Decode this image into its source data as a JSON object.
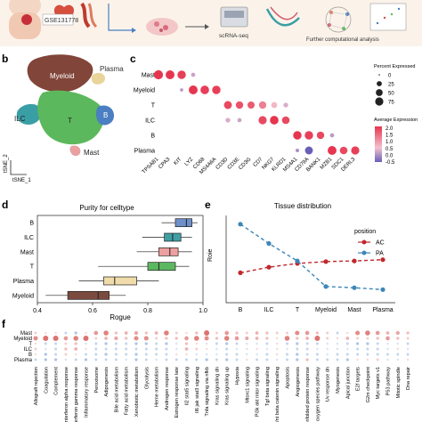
{
  "panel_a": {
    "geo_id": "GSE131778",
    "step_label": "scRNA-seq",
    "analysis_label": "Further computational analysis"
  },
  "panel_b": {
    "letter": "b",
    "clusters": [
      {
        "name": "Myeloid",
        "color": "#7a3b2e"
      },
      {
        "name": "Plasma",
        "color": "#e9d49a"
      },
      {
        "name": "ILC",
        "color": "#3a9ea5"
      },
      {
        "name": "T",
        "color": "#5cb85c"
      },
      {
        "name": "B",
        "color": "#4a7fc1"
      },
      {
        "name": "Mast",
        "color": "#e8a0a0"
      }
    ],
    "xlabel": "tSNE_1",
    "ylabel": "tSNE_2"
  },
  "panel_c": {
    "letter": "c",
    "legend_size_title": "Percent Expressed",
    "legend_color_title": "Average Expression",
    "chart_data": {
      "type": "dotplot",
      "rows": [
        "Mast",
        "Myeloid",
        "T",
        "ILC",
        "B",
        "Plasma"
      ],
      "genes": [
        "TPSAB1",
        "CPA3",
        "KIT",
        "LYZ",
        "CD68",
        "MS4A6A",
        "CD3D",
        "CD3E",
        "CD3G",
        "CD7",
        "NKG7",
        "KLRD1",
        "MS4A1",
        "CD79A",
        "BANK1",
        "MZB1",
        "SDC1",
        "DERL3"
      ],
      "size_ticks": [
        0,
        25,
        50,
        75
      ],
      "color_ticks": [
        2.0,
        1.5,
        1.0,
        0.5,
        0.0,
        -0.5
      ],
      "dots": [
        {
          "row": "Mast",
          "gene": "TPSAB1",
          "pct": 95,
          "avg": 2.0
        },
        {
          "row": "Mast",
          "gene": "CPA3",
          "pct": 90,
          "avg": 2.0
        },
        {
          "row": "Mast",
          "gene": "KIT",
          "pct": 80,
          "avg": 1.9
        },
        {
          "row": "Myeloid",
          "gene": "LYZ",
          "pct": 90,
          "avg": 2.0
        },
        {
          "row": "Myeloid",
          "gene": "CD68",
          "pct": 85,
          "avg": 1.9
        },
        {
          "row": "Myeloid",
          "gene": "MS4A6A",
          "pct": 80,
          "avg": 1.9
        },
        {
          "row": "Mast",
          "gene": "LYZ",
          "pct": 15,
          "avg": 0.2
        },
        {
          "row": "Myeloid",
          "gene": "KIT",
          "pct": 8,
          "avg": 0.1
        },
        {
          "row": "T",
          "gene": "CD3D",
          "pct": 70,
          "avg": 1.8
        },
        {
          "row": "T",
          "gene": "CD3E",
          "pct": 60,
          "avg": 1.7
        },
        {
          "row": "T",
          "gene": "CD3G",
          "pct": 55,
          "avg": 1.6
        },
        {
          "row": "T",
          "gene": "CD7",
          "pct": 60,
          "avg": 1.2
        },
        {
          "row": "T",
          "gene": "NKG7",
          "pct": 35,
          "avg": 0.6
        },
        {
          "row": "T",
          "gene": "KLRD1",
          "pct": 20,
          "avg": 0.3
        },
        {
          "row": "ILC",
          "gene": "CD3D",
          "pct": 20,
          "avg": 0.3
        },
        {
          "row": "ILC",
          "gene": "CD3E",
          "pct": 15,
          "avg": 0.2
        },
        {
          "row": "ILC",
          "gene": "CD7",
          "pct": 75,
          "avg": 1.8
        },
        {
          "row": "ILC",
          "gene": "NKG7",
          "pct": 85,
          "avg": 2.0
        },
        {
          "row": "ILC",
          "gene": "KLRD1",
          "pct": 65,
          "avg": 1.8
        },
        {
          "row": "B",
          "gene": "MS4A1",
          "pct": 80,
          "avg": 2.0
        },
        {
          "row": "B",
          "gene": "CD79A",
          "pct": 80,
          "avg": 1.9
        },
        {
          "row": "B",
          "gene": "BANK1",
          "pct": 60,
          "avg": 1.8
        },
        {
          "row": "B",
          "gene": "MZB1",
          "pct": 15,
          "avg": 0.1
        },
        {
          "row": "Plasma",
          "gene": "CD79A",
          "pct": 70,
          "avg": -0.5
        },
        {
          "row": "Plasma",
          "gene": "MZB1",
          "pct": 90,
          "avg": 2.0
        },
        {
          "row": "Plasma",
          "gene": "SDC1",
          "pct": 65,
          "avg": 1.8
        },
        {
          "row": "Plasma",
          "gene": "DERL3",
          "pct": 75,
          "avg": 1.9
        },
        {
          "row": "Plasma",
          "gene": "MS4A1",
          "pct": 10,
          "avg": 0.0
        }
      ]
    }
  },
  "panel_d": {
    "letter": "d",
    "chart_data": {
      "type": "boxplot",
      "title": "Purity for celltype",
      "xlabel": "Rogue",
      "xlim": [
        0.4,
        1.0
      ],
      "xticks": [
        "0.4",
        "0.6",
        "0.8",
        "1.0"
      ],
      "categories": [
        "B",
        "ILC",
        "Mast",
        "T",
        "Plasma",
        "Myeloid"
      ],
      "boxes": [
        {
          "name": "B",
          "min": 0.85,
          "q1": 0.9,
          "median": 0.94,
          "q3": 0.96,
          "max": 0.98,
          "color": "#6f8fc8"
        },
        {
          "name": "ILC",
          "min": 0.78,
          "q1": 0.86,
          "median": 0.89,
          "q3": 0.92,
          "max": 0.96,
          "color": "#3f9fa3"
        },
        {
          "name": "Mast",
          "min": 0.76,
          "q1": 0.84,
          "median": 0.88,
          "q3": 0.91,
          "max": 0.96,
          "color": "#ee9fa0"
        },
        {
          "name": "T",
          "min": 0.62,
          "q1": 0.8,
          "median": 0.84,
          "q3": 0.9,
          "max": 0.95,
          "color": "#5cb860"
        },
        {
          "name": "Plasma",
          "min": 0.55,
          "q1": 0.64,
          "median": 0.68,
          "q3": 0.76,
          "max": 0.84,
          "color": "#efdcaa"
        },
        {
          "name": "Myeloid",
          "min": 0.43,
          "q1": 0.51,
          "median": 0.62,
          "q3": 0.66,
          "max": 0.72,
          "color": "#7a4b3e"
        }
      ]
    }
  },
  "panel_e": {
    "letter": "e",
    "chart_data": {
      "type": "line",
      "title": "Tissue distribution",
      "ylabel": "Roie",
      "categories": [
        "B",
        "ILC",
        "T",
        "Myeloid",
        "Mast",
        "Plasma"
      ],
      "ylim": [
        0.4,
        1.8
      ],
      "legend_title": "position",
      "legend_position": "top-right",
      "series": [
        {
          "name": "AC",
          "color": "#c0282d",
          "values": [
            0.88,
            0.97,
            1.03,
            1.06,
            1.07,
            1.09
          ]
        },
        {
          "name": "PA",
          "color": "#3d86b8",
          "values": [
            1.66,
            1.35,
            1.07,
            0.66,
            0.64,
            0.61
          ]
        }
      ]
    }
  },
  "panel_f": {
    "letter": "f",
    "rows": [
      "Mast",
      "Myeloid",
      "T",
      "ILC",
      "B",
      "Plasma"
    ],
    "pathways": [
      "Allograft rejection",
      "Coagulation",
      "Complement",
      "Interferon alpha response",
      "Interferon gamma response",
      "Inflammatory response",
      "Peroxisome",
      "Adipogenesis",
      "Bile acid metabolism",
      "Fatty acid metabolism",
      "Xenobiotic metabolism",
      "Glycolysis",
      "Heme metabolism",
      "Androgen response",
      "Estrogen response late",
      "Il2 stat5 signaling",
      "Il6 jak stat3 signaling",
      "Tnfa signaling via nfkb",
      "Kras signaling dn",
      "Kras signaling up",
      "Hypoxia",
      "Mtorc1 signaling",
      "Pi3k akt mtor signaling",
      "Tgf beta signaling",
      "Wnt beta catenin signaling",
      "Apoptosis",
      "Angiogenesis",
      "Unfolded protein response",
      "Reactive oxygen species pathway",
      "Uv response dn",
      "Myogenesis",
      "Apical junction",
      "E2f targets",
      "G2m checkpoint",
      "Myc targets v1",
      "P53 pathway",
      "Mitotic spindle",
      "Dna repair"
    ],
    "chart_data": {
      "type": "heatmap",
      "rows": [
        "Mast",
        "Myeloid",
        "T",
        "ILC",
        "B",
        "Plasma"
      ],
      "values": [
        [
          0.2,
          0.1,
          0.1,
          -0.2,
          -0.3,
          0.1,
          0.6,
          0.8,
          0.3,
          0.4,
          0.5,
          0.3,
          0.4,
          0.8,
          0.2,
          0.1,
          0.3,
          0.9,
          0.2,
          0.6,
          0.3,
          0.2,
          0.4,
          0.3,
          0.2,
          0.2,
          0.7,
          0.6,
          0.3,
          0.2,
          -0.2,
          0.1,
          0.7,
          0.8,
          0.6,
          0.4,
          0.5,
          0.3
        ],
        [
          0.7,
          0.9,
          0.9,
          0.6,
          0.8,
          0.9,
          0.2,
          0.4,
          0.5,
          0.3,
          0.7,
          0.7,
          0.2,
          0.3,
          0.3,
          0.6,
          0.8,
          0.7,
          0.3,
          0.8,
          0.6,
          0.5,
          0.4,
          0.3,
          0.1,
          0.8,
          0.3,
          0.4,
          0.9,
          0.2,
          0.1,
          0.4,
          0.2,
          0.2,
          0.3,
          0.6,
          0.3,
          0.2
        ],
        [
          0.1,
          -0.2,
          -0.2,
          0.2,
          0.3,
          -0.1,
          -0.2,
          -0.3,
          -0.2,
          -0.2,
          -0.3,
          -0.3,
          -0.2,
          -0.3,
          -0.1,
          0.3,
          0.1,
          -0.1,
          -0.2,
          -0.3,
          -0.2,
          -0.1,
          -0.1,
          -0.2,
          0.1,
          -0.2,
          -0.3,
          -0.2,
          -0.2,
          -0.1,
          -0.1,
          -0.2,
          -0.3,
          -0.3,
          -0.2,
          -0.1,
          -0.1,
          -0.2
        ],
        [
          0.2,
          -0.1,
          -0.2,
          0.3,
          0.4,
          0.1,
          -0.2,
          -0.2,
          -0.2,
          -0.2,
          -0.2,
          -0.2,
          -0.2,
          -0.2,
          -0.1,
          0.4,
          0.2,
          0.1,
          -0.1,
          -0.2,
          -0.1,
          -0.1,
          0.1,
          -0.1,
          0.1,
          -0.1,
          -0.2,
          -0.2,
          -0.1,
          -0.1,
          -0.1,
          -0.1,
          -0.2,
          -0.2,
          -0.2,
          -0.1,
          0.1,
          -0.1
        ],
        [
          0.1,
          -0.3,
          -0.2,
          0.2,
          0.1,
          -0.2,
          -0.2,
          -0.3,
          -0.2,
          -0.2,
          -0.3,
          -0.2,
          -0.2,
          -0.2,
          0.1,
          0.1,
          -0.1,
          -0.1,
          -0.1,
          -0.2,
          -0.2,
          -0.1,
          -0.1,
          -0.2,
          0.1,
          -0.2,
          -0.3,
          -0.2,
          -0.2,
          -0.1,
          -0.2,
          -0.2,
          -0.2,
          -0.2,
          -0.2,
          -0.2,
          -0.2,
          -0.2
        ],
        [
          -0.2,
          -0.3,
          -0.3,
          -0.1,
          -0.2,
          -0.3,
          -0.2,
          -0.2,
          -0.2,
          -0.1,
          -0.3,
          -0.2,
          -0.1,
          -0.2,
          -0.2,
          -0.2,
          -0.2,
          -0.3,
          -0.2,
          -0.3,
          -0.2,
          0.1,
          -0.2,
          -0.2,
          -0.1,
          -0.2,
          -0.3,
          0.3,
          -0.2,
          -0.2,
          -0.2,
          -0.3,
          0.1,
          0.1,
          0.2,
          -0.1,
          -0.1,
          0.1
        ]
      ]
    }
  }
}
